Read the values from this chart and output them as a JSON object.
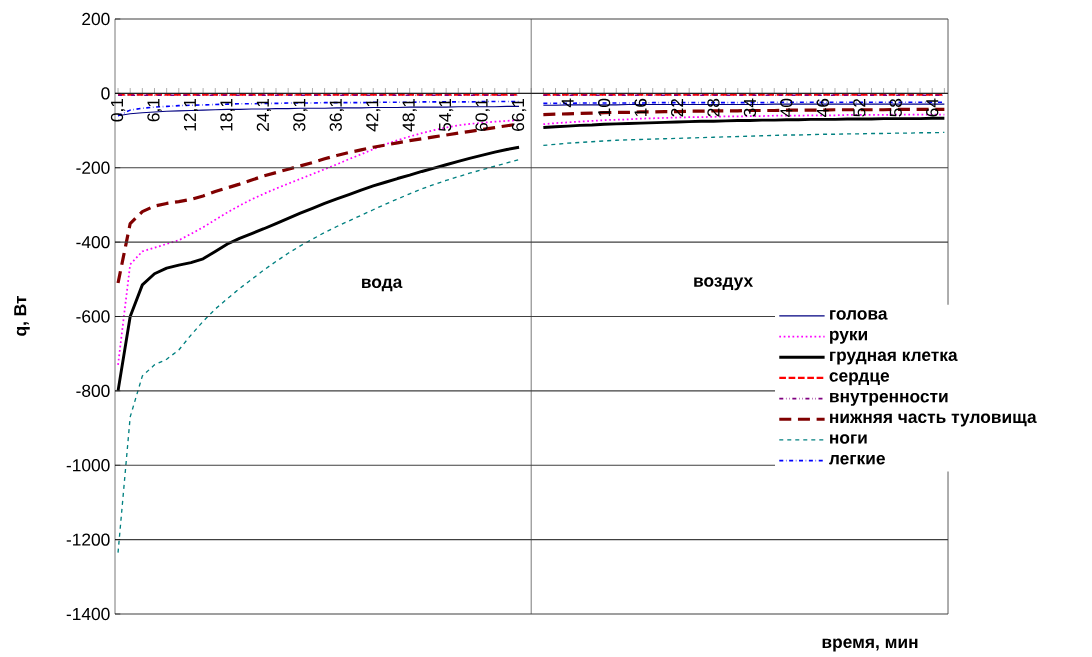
{
  "chart_data": {
    "type": "line",
    "xlabel": "время, мин",
    "ylabel": "q, Вт",
    "categories": [
      "0,1",
      null,
      null,
      "6,1",
      null,
      null,
      "12,1",
      null,
      null,
      "18,1",
      null,
      null,
      "24,1",
      null,
      null,
      "30,1",
      null,
      null,
      "36,1",
      null,
      null,
      "42,1",
      null,
      null,
      "48,1",
      null,
      null,
      "54,1",
      null,
      null,
      "60,1",
      null,
      null,
      "66,1",
      null,
      null,
      null,
      "4",
      null,
      null,
      "10",
      null,
      null,
      "16",
      null,
      null,
      "22",
      null,
      null,
      "28",
      null,
      null,
      "34",
      null,
      null,
      "40",
      null,
      null,
      "46",
      null,
      null,
      "52",
      null,
      null,
      "58",
      null,
      null,
      "64",
      null
    ],
    "series": [
      {
        "name": "голова",
        "color": "#000080",
        "line_style": "solid",
        "values": [
          -60,
          -55,
          -52,
          -50,
          -48,
          -47,
          -46,
          -45,
          -44,
          -43,
          -43,
          -42,
          -42,
          -41,
          -41,
          -40,
          -40,
          -40,
          -39,
          -39,
          -39,
          -38,
          -38,
          -38,
          -37,
          -37,
          -37,
          -37,
          -36,
          -36,
          -36,
          -36,
          -35,
          -35,
          null,
          -32,
          -32,
          -31,
          -31,
          -31,
          -31,
          -31,
          -30,
          -30,
          -30,
          -30,
          -30,
          -30,
          -30,
          -30,
          -30,
          -30,
          -30,
          -30,
          -29,
          -29,
          -29,
          -29,
          -29,
          -29,
          -29,
          -29,
          -29,
          -29,
          -29,
          -29,
          -29,
          -29,
          -29
        ]
      },
      {
        "name": "руки",
        "color": "#ff00ff",
        "line_style": "dotted",
        "values": [
          -730,
          -460,
          -425,
          -415,
          -405,
          -395,
          -378,
          -360,
          -340,
          -320,
          -302,
          -285,
          -270,
          -256,
          -243,
          -230,
          -217,
          -204,
          -191,
          -177,
          -164,
          -150,
          -137,
          -126,
          -116,
          -107,
          -99,
          -92,
          -86,
          -82,
          -79,
          -76,
          -74,
          -72,
          null,
          -83,
          -80,
          -78,
          -76,
          -74,
          -72,
          -71,
          -70,
          -68,
          -67,
          -66,
          -65,
          -64,
          -64,
          -63,
          -62,
          -62,
          -61,
          -61,
          -60,
          -60,
          -60,
          -59,
          -59,
          -59,
          -58,
          -58,
          -58,
          -58,
          -57,
          -57,
          -57,
          -57,
          -57
        ]
      },
      {
        "name": "грудная клетка",
        "color": "#000000",
        "line_style": "solid",
        "values": [
          -800,
          -600,
          -515,
          -485,
          -470,
          -462,
          -455,
          -445,
          -425,
          -405,
          -390,
          -377,
          -364,
          -350,
          -336,
          -322,
          -309,
          -296,
          -284,
          -272,
          -260,
          -249,
          -239,
          -229,
          -220,
          -210,
          -201,
          -192,
          -183,
          -174,
          -166,
          -158,
          -151,
          -145,
          null,
          -92,
          -90,
          -88,
          -86,
          -85,
          -83,
          -82,
          -81,
          -80,
          -79,
          -78,
          -77,
          -76,
          -75,
          -75,
          -74,
          -73,
          -73,
          -72,
          -72,
          -71,
          -71,
          -70,
          -70,
          -70,
          -69,
          -69,
          -69,
          -68,
          -68,
          -68,
          -68,
          -67,
          -67
        ]
      },
      {
        "name": "сердце",
        "color": "#ff0000",
        "line_style": "dashed",
        "values": [
          -3,
          -3,
          -3,
          -3,
          -3,
          -3,
          -3,
          -3,
          -3,
          -3,
          -3,
          -3,
          -3,
          -3,
          -3,
          -3,
          -3,
          -3,
          -3,
          -3,
          -3,
          -3,
          -3,
          -3,
          -3,
          -3,
          -3,
          -3,
          -3,
          -3,
          -3,
          -3,
          -3,
          -3,
          null,
          -3,
          -3,
          -3,
          -3,
          -3,
          -3,
          -3,
          -3,
          -3,
          -3,
          -3,
          -3,
          -3,
          -3,
          -3,
          -3,
          -3,
          -3,
          -3,
          -3,
          -3,
          -3,
          -3,
          -3,
          -3,
          -3,
          -3,
          -3,
          -3,
          -3,
          -3,
          -3,
          -3,
          -3
        ]
      },
      {
        "name": "внутренности",
        "color": "#800080",
        "line_style": "dashdotdot",
        "values": [
          -5,
          -5,
          -5,
          -5,
          -5,
          -5,
          -5,
          -5,
          -5,
          -5,
          -5,
          -5,
          -5,
          -5,
          -5,
          -5,
          -5,
          -5,
          -5,
          -5,
          -5,
          -5,
          -5,
          -5,
          -5,
          -5,
          -5,
          -5,
          -5,
          -5,
          -5,
          -5,
          -5,
          -5,
          null,
          -5,
          -5,
          -5,
          -5,
          -5,
          -5,
          -5,
          -5,
          -5,
          -5,
          -5,
          -5,
          -5,
          -5,
          -5,
          -5,
          -5,
          -5,
          -5,
          -5,
          -5,
          -5,
          -5,
          -5,
          -5,
          -5,
          -5,
          -5,
          -5,
          -5,
          -5,
          -5,
          -5,
          -5
        ]
      },
      {
        "name": "нижняя часть туловища",
        "color": "#800000",
        "line_style": "longdash",
        "values": [
          -510,
          -350,
          -318,
          -303,
          -296,
          -291,
          -285,
          -276,
          -264,
          -254,
          -244,
          -233,
          -222,
          -213,
          -204,
          -195,
          -186,
          -176,
          -167,
          -159,
          -152,
          -145,
          -139,
          -133,
          -127,
          -122,
          -117,
          -112,
          -107,
          -102,
          -97,
          -92,
          -87,
          -82,
          null,
          -57,
          -56,
          -55,
          -54,
          -53,
          -52,
          -51,
          -51,
          -50,
          -50,
          -49,
          -49,
          -48,
          -48,
          -47,
          -47,
          -47,
          -46,
          -46,
          -46,
          -45,
          -45,
          -45,
          -45,
          -44,
          -44,
          -44,
          -44,
          -44,
          -43,
          -43,
          -43,
          -43,
          -43
        ]
      },
      {
        "name": "ноги",
        "color": "#008080",
        "line_style": "dashed",
        "values": [
          -1235,
          -870,
          -760,
          -730,
          -715,
          -690,
          -650,
          -613,
          -580,
          -552,
          -525,
          -500,
          -475,
          -452,
          -430,
          -410,
          -392,
          -374,
          -358,
          -343,
          -328,
          -313,
          -298,
          -284,
          -270,
          -257,
          -245,
          -234,
          -224,
          -214,
          -205,
          -196,
          -187,
          -178,
          null,
          -140,
          -137,
          -134,
          -132,
          -130,
          -128,
          -126,
          -125,
          -124,
          -123,
          -122,
          -121,
          -120,
          -119,
          -118,
          -117,
          -116,
          -115,
          -114,
          -113,
          -112,
          -112,
          -111,
          -110,
          -110,
          -109,
          -109,
          -108,
          -108,
          -107,
          -107,
          -106,
          -106,
          -105
        ]
      },
      {
        "name": "легкие",
        "color": "#0000ff",
        "line_style": "dashdot",
        "values": [
          -60,
          -45,
          -40,
          -37,
          -35,
          -33,
          -32,
          -31,
          -30,
          -29,
          -28,
          -28,
          -27,
          -27,
          -26,
          -26,
          -26,
          -25,
          -25,
          -25,
          -25,
          -24,
          -24,
          -24,
          -24,
          -23,
          -23,
          -23,
          -23,
          -23,
          -22,
          -22,
          -22,
          -22,
          null,
          -27,
          -27,
          -27,
          -26,
          -26,
          -26,
          -26,
          -26,
          -26,
          -25,
          -25,
          -25,
          -25,
          -25,
          -25,
          -25,
          -25,
          -25,
          -25,
          -24,
          -24,
          -24,
          -24,
          -24,
          -24,
          -24,
          -24,
          -24,
          -24,
          -24,
          -24,
          -24,
          -24,
          -24
        ]
      }
    ],
    "ylim": [
      -1400,
      200
    ],
    "yticks": [
      -1400,
      -1200,
      -1000,
      -800,
      -600,
      -400,
      -200,
      0,
      200
    ],
    "grid": "y",
    "legend": "right",
    "annotations": [
      "вода",
      "воздух"
    ]
  }
}
